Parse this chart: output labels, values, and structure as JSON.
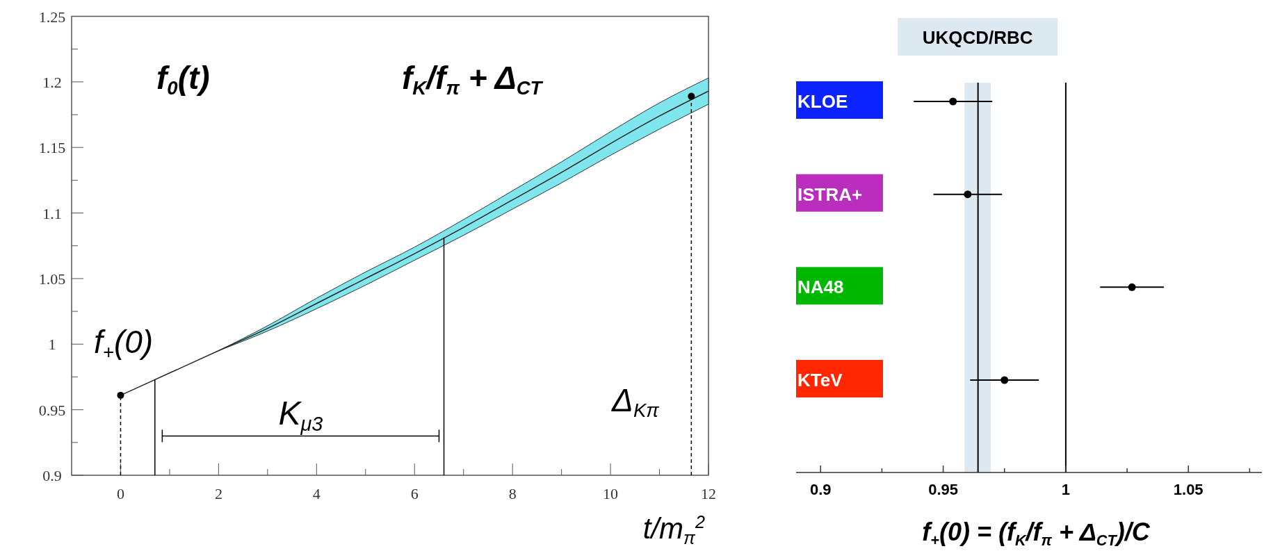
{
  "chart_data": [
    {
      "type": "line",
      "xlabel": "t/m$_{π}$$^{2}$",
      "xlim": [
        -1,
        12
      ],
      "ylim": [
        0.9,
        1.25
      ],
      "xticks": [
        0,
        2,
        4,
        6,
        8,
        10,
        12,
        {
          "value": 1,
          "label": null
        },
        {
          "value": 3,
          "label": null
        },
        {
          "value": 5,
          "label": null
        },
        {
          "value": 7,
          "label": null
        },
        {
          "value": 9,
          "label": null
        },
        {
          "value": 11,
          "label": null
        }
      ],
      "yticks": [
        {
          "value": 0.9,
          "label": "0.9"
        },
        {
          "value": 0.95,
          "label": "0.95"
        },
        {
          "value": 1,
          "label": "1"
        },
        {
          "value": 1.05,
          "label": "1.05"
        },
        {
          "value": 1.1,
          "label": "1.1"
        },
        {
          "value": 1.15,
          "label": "1.15"
        },
        {
          "value": 1.2,
          "label": "1.2"
        },
        {
          "value": 1.25,
          "label": "1.25"
        },
        {
          "value": 0.925,
          "label": null
        },
        {
          "value": 0.975,
          "label": null
        },
        {
          "value": 1.025,
          "label": null
        },
        {
          "value": 1.075,
          "label": null
        },
        {
          "value": 1.125,
          "label": null
        },
        {
          "value": 1.175,
          "label": null
        },
        {
          "value": 1.225,
          "label": null
        }
      ],
      "series": [
        {
          "color": "#222222",
          "x": [
            0,
            1,
            2,
            3,
            4,
            5,
            6,
            7,
            8,
            9,
            10,
            11,
            12
          ],
          "values": [
            0.961,
            0.978,
            0.995,
            1.012,
            1.031,
            1.05,
            1.069,
            1.089,
            1.11,
            1.131,
            1.153,
            1.174,
            1.193
          ],
          "lower": [
            null,
            null,
            0.995,
            1.01,
            1.027,
            1.045,
            1.064,
            1.083,
            1.103,
            1.123,
            1.144,
            1.164,
            1.183
          ],
          "upper": [
            null,
            null,
            0.995,
            1.014,
            1.035,
            1.055,
            1.074,
            1.095,
            1.117,
            1.139,
            1.162,
            1.184,
            1.203
          ]
        },
        {
          "type": "scatter",
          "color": "#000000",
          "marker": "circle",
          "x": [
            0,
            11.65
          ],
          "values": [
            0.961,
            1.189
          ]
        },
        {
          "type": "line",
          "color": "#000000",
          "line_style": "solid",
          "x": [
            0.85,
            6.5
          ],
          "values": [
            0.93,
            0.93
          ]
        }
      ],
      "ref_lines": [
        {
          "axis": "x",
          "value": 0,
          "line_style": "dashed"
        },
        {
          "axis": "x",
          "value": 0.7,
          "line_style": "solid"
        },
        {
          "axis": "x",
          "value": 6.6,
          "line_style": "solid"
        },
        {
          "axis": "x",
          "value": 11.65,
          "line_style": "dashed"
        }
      ],
      "annotations": [
        "f$_{0}$(t)",
        "f$_{K}$/f$_{π}$ + Δ$_{CT}$",
        "f$_{+}$(0)",
        {
          "text": "K$_{μ3}$",
          "x": 3.675,
          "y": 0.93
        },
        "Δ$_{Kπ}$"
      ]
    },
    {
      "type": "scatter",
      "orientation": "horizontal",
      "marker": "circle",
      "xlabel": "f$_{+}$(0) = (f$_{K}$/f$_{π}$ + Δ$_{CT}$)/C",
      "xlim": [
        0.89,
        1.08
      ],
      "xticks": [
        0.9,
        0.95,
        1,
        1.05,
        {
          "value": 0.925,
          "label": null
        },
        {
          "value": 0.975,
          "label": null
        },
        {
          "value": 1.025,
          "label": null
        },
        {
          "value": 1.075,
          "label": null
        }
      ],
      "categories": [
        "KLOE",
        "ISTRA+",
        "NA48",
        "KTeV"
      ],
      "colors": [
        "#0a23ff",
        "#bb2dbf",
        "#00b800",
        "#ff2600"
      ],
      "series": [
        {
          "color": "#000000",
          "values": [
            0.954,
            0.96,
            1.027,
            0.975
          ],
          "errors": [
            [
              0.938,
              0.97
            ],
            [
              0.946,
              0.974
            ],
            [
              1.014,
              1.04
            ],
            [
              0.961,
              0.989
            ]
          ]
        }
      ],
      "bands": [
        {
          "axis": "x",
          "from": 0.9587,
          "to": 0.9694,
          "label": "UKQCD/RBC",
          "color": "#dde9f1"
        }
      ],
      "ref_lines": [
        {
          "axis": "x",
          "value": 0.9642
        },
        {
          "axis": "x",
          "value": 1
        }
      ]
    }
  ]
}
